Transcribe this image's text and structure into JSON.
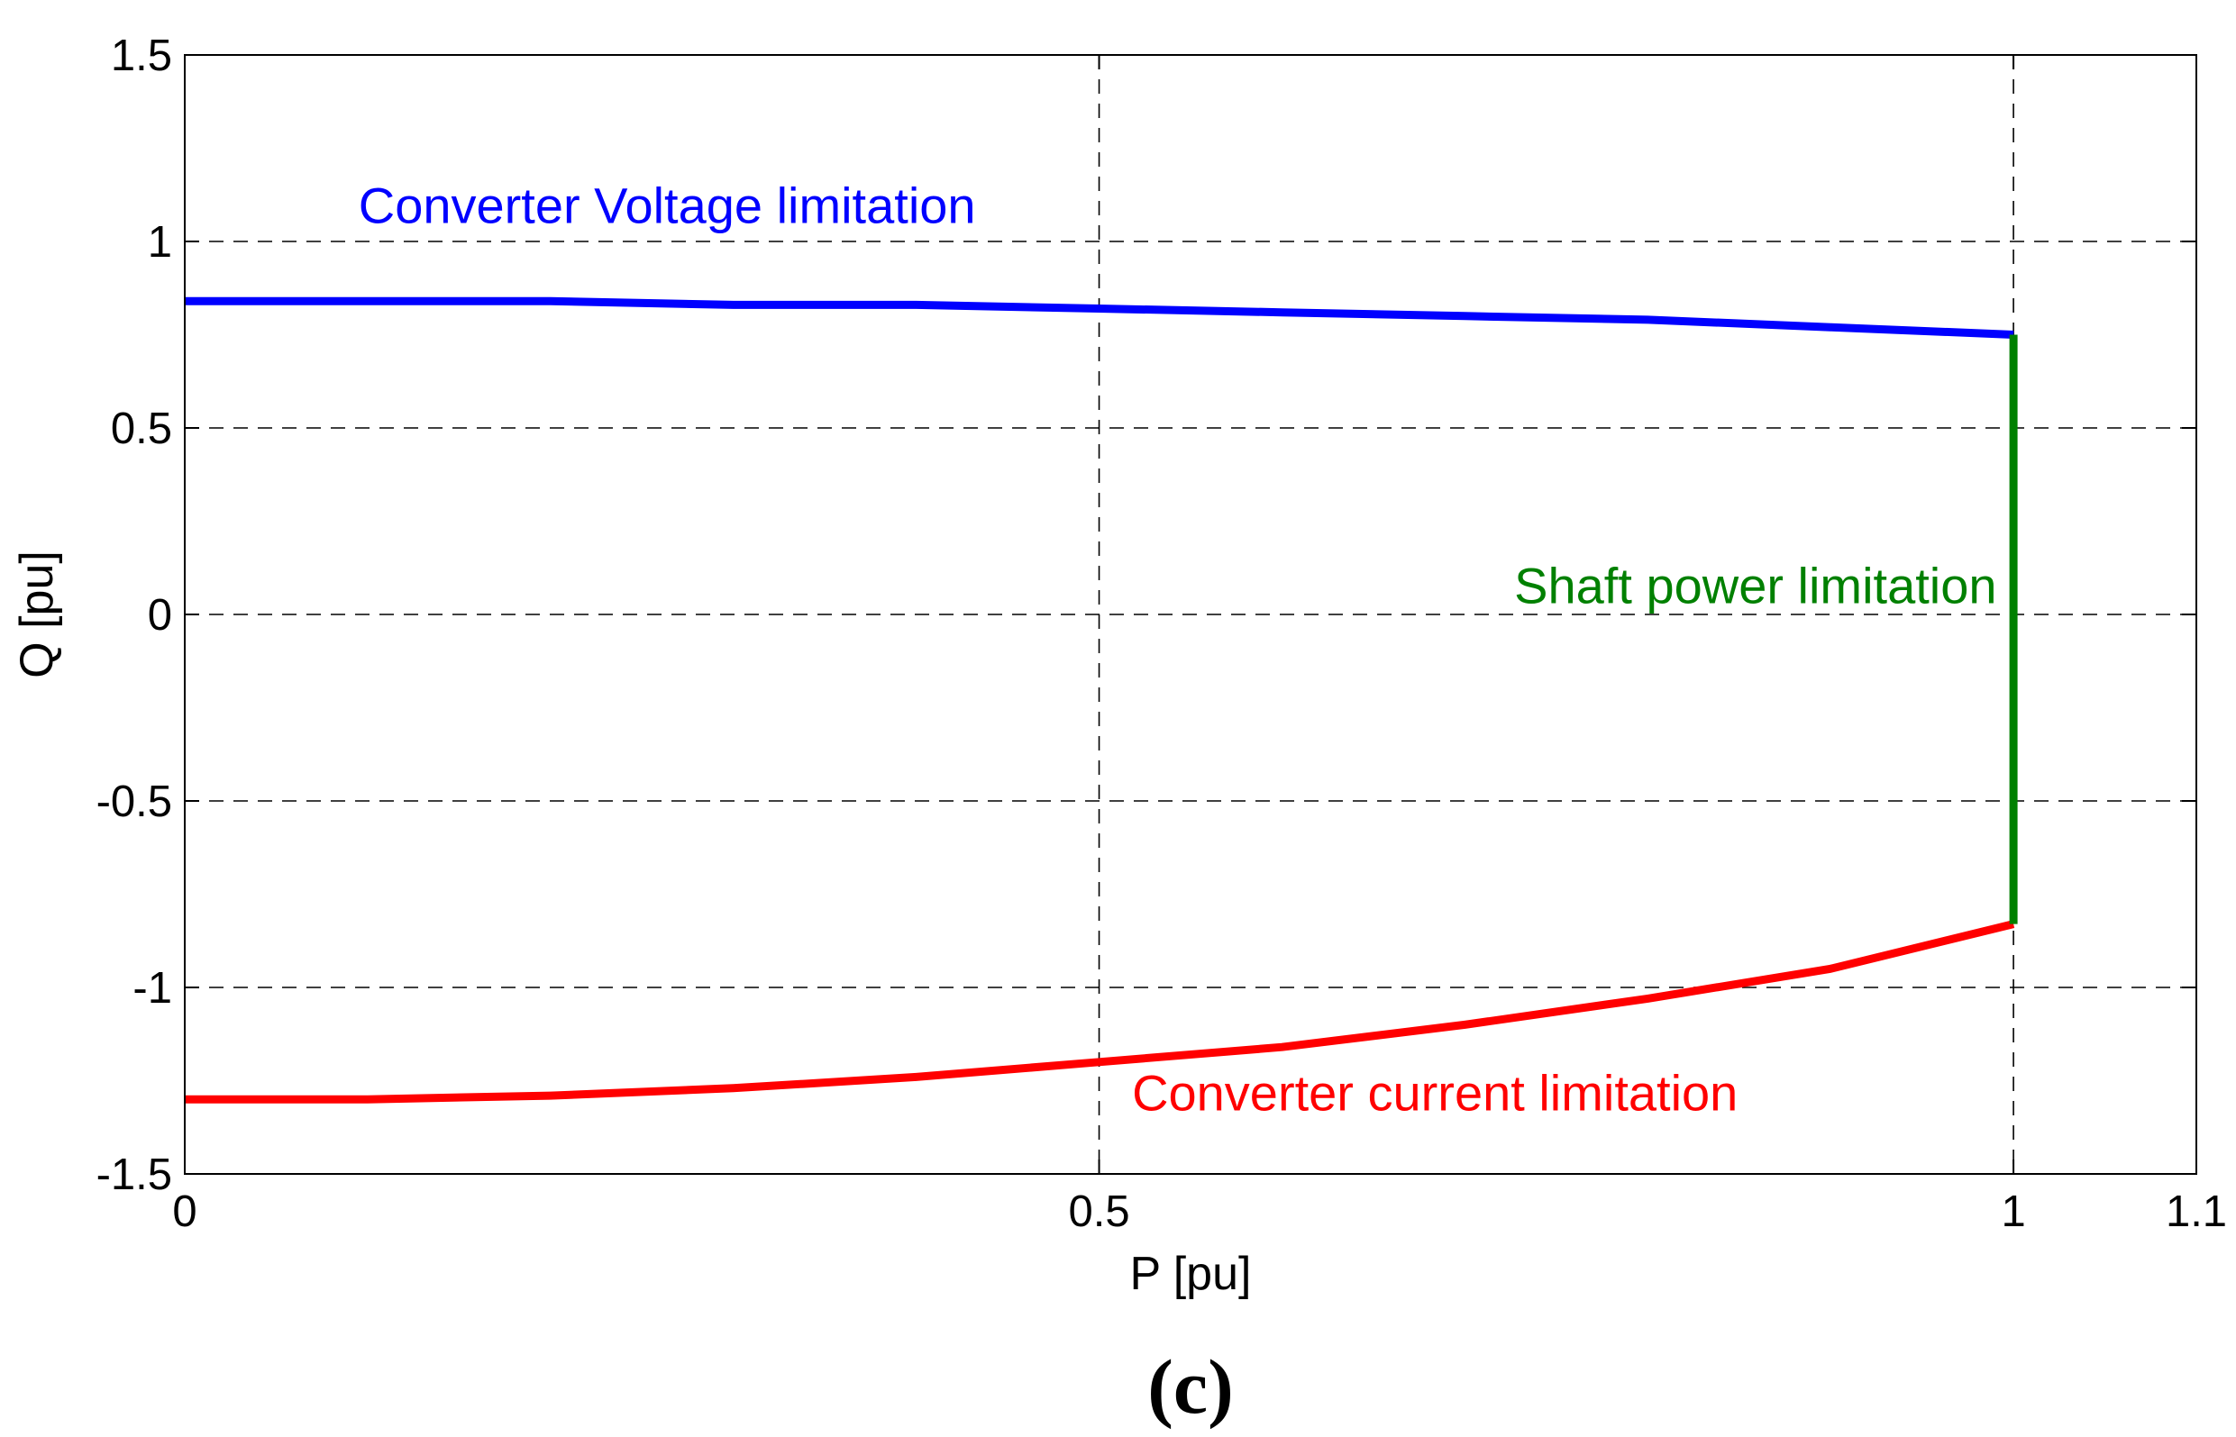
{
  "chart_data": {
    "type": "line",
    "xlabel": "P [pu]",
    "ylabel": "Q [pu]",
    "xlim": [
      0,
      1.1
    ],
    "ylim": [
      -1.5,
      1.5
    ],
    "xticks": [
      0,
      0.5,
      1,
      1.1
    ],
    "xtick_labels": [
      "0",
      "0.5",
      "1",
      "1.1"
    ],
    "yticks": [
      -1.5,
      -1,
      -0.5,
      0,
      0.5,
      1,
      1.5
    ],
    "ytick_labels": [
      "-1.5",
      "-1",
      "-0.5",
      "0",
      "0.5",
      "1",
      "1.5"
    ],
    "grid": true,
    "grid_style": "dashed",
    "grid_x": [
      0.5,
      1
    ],
    "series": [
      {
        "color": "#0000ff",
        "x": [
          0,
          0.1,
          0.2,
          0.3,
          0.4,
          0.5,
          0.6,
          0.7,
          0.8,
          0.9,
          1.0
        ],
        "y": [
          0.84,
          0.84,
          0.84,
          0.83,
          0.83,
          0.82,
          0.81,
          0.8,
          0.79,
          0.77,
          0.75
        ]
      },
      {
        "color": "#ff0000",
        "x": [
          0,
          0.1,
          0.2,
          0.3,
          0.4,
          0.5,
          0.6,
          0.7,
          0.8,
          0.9,
          1.0
        ],
        "y": [
          -1.3,
          -1.3,
          -1.29,
          -1.27,
          -1.24,
          -1.2,
          -1.16,
          -1.1,
          -1.03,
          -0.95,
          -0.83
        ]
      },
      {
        "color": "#008000",
        "x": [
          1.0,
          1.0
        ],
        "y": [
          -0.83,
          0.75
        ]
      }
    ],
    "annotations": [
      {
        "text": "Converter Voltage limitation",
        "x": 0.095,
        "y": 1.05,
        "color": "#0000ff"
      },
      {
        "text": "Shaft power limitation",
        "x": 0.727,
        "y": 0.03,
        "color": "#008000"
      },
      {
        "text": "Converter current limitation",
        "x": 0.518,
        "y": -1.33,
        "color": "#ff0000"
      }
    ],
    "panel_label": "(c)"
  }
}
